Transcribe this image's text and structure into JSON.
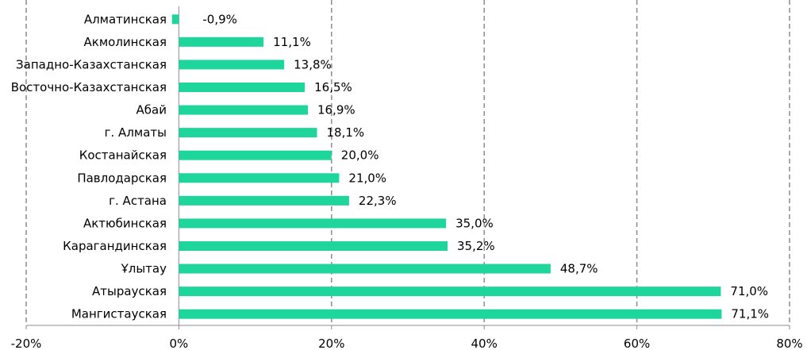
{
  "chart_data": {
    "type": "bar",
    "orientation": "horizontal",
    "categories": [
      "Алматинская",
      "Акмолинская",
      "Западно-Казахстанская",
      "Восточно-Казахстанская",
      "Абай",
      "г. Алматы",
      "Костанайская",
      "Павлодарская",
      "г. Астана",
      "Актюбинская",
      "Карагандинская",
      "Ұлытау",
      "Атырауская",
      "Мангистауская"
    ],
    "values": [
      -0.9,
      11.1,
      13.8,
      16.5,
      16.9,
      18.1,
      20.0,
      21.0,
      22.3,
      35.0,
      35.2,
      48.7,
      71.0,
      71.1
    ],
    "value_labels": [
      "-0,9%",
      "11,1%",
      "13,8%",
      "16,5%",
      "16,9%",
      "18,1%",
      "20,0%",
      "21,0%",
      "22,3%",
      "35,0%",
      "35,2%",
      "48,7%",
      "71,0%",
      "71,1%"
    ],
    "xlim": [
      -20,
      80
    ],
    "xticks": [
      -20,
      0,
      20,
      40,
      60,
      80
    ],
    "xtick_labels": [
      "-20%",
      "0%",
      "20%",
      "40%",
      "60%",
      "80%"
    ],
    "grid": "vertical dashed",
    "bar_color": "#1ed69c",
    "title": "",
    "xlabel": "",
    "ylabel": ""
  }
}
